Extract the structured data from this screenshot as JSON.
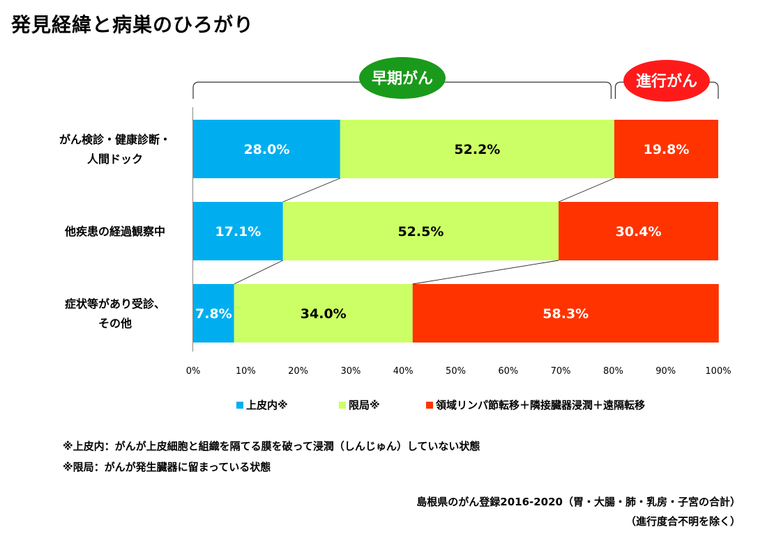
{
  "page": {
    "title": "発見経緯と病巣のひろがり"
  },
  "groups": {
    "early": {
      "label": "早期がん",
      "color": "#1a9a1a"
    },
    "advanced": {
      "label": "進行がん",
      "color": "#ff1a1a"
    }
  },
  "legend": {
    "items": [
      {
        "label": "上皮内※",
        "color": "#00aeef"
      },
      {
        "label": "限局※",
        "color": "#ccff66"
      },
      {
        "label": "領域リンパ節転移＋隣接臓器浸潤＋遠隔転移",
        "color": "#ff3300"
      }
    ]
  },
  "notes": {
    "note1": "※上皮内：がんが上皮細胞と組織を隔てる膜を破って浸潤（しんじゅん）していない状態",
    "note2": "※限局：がんが発生臓器に留まっている状態"
  },
  "source": {
    "line1": "島根県のがん登録2016-2020（胃・大腸・肺・乳房・子宮の合計）",
    "line2": "（進行度合不明を除く）"
  },
  "chart_data": {
    "type": "bar",
    "orientation": "horizontal",
    "stacked": "percent",
    "categories": [
      [
        "がん検診・健康診断・",
        "人間ドック"
      ],
      [
        "他疾患の経過観察中"
      ],
      [
        "症状等があり受診、",
        "その他"
      ]
    ],
    "series": [
      {
        "name": "上皮内※",
        "color": "#00aeef",
        "label_color": "#ffffff",
        "values": [
          28.0,
          17.1,
          7.8
        ],
        "labels": [
          "28.0%",
          "17.1%",
          "7.8%"
        ]
      },
      {
        "name": "限局※",
        "color": "#ccff66",
        "label_color": "#000000",
        "values": [
          52.2,
          52.5,
          34.0
        ],
        "labels": [
          "52.2%",
          "52.5%",
          "34.0%"
        ]
      },
      {
        "name": "領域リンパ節転移＋隣接臓器浸潤＋遠隔転移",
        "color": "#ff3300",
        "label_color": "#ffffff",
        "values": [
          19.8,
          30.4,
          58.3
        ],
        "labels": [
          "19.8%",
          "30.4%",
          "58.3%"
        ]
      }
    ],
    "xlim": [
      0,
      100
    ],
    "xticks": [
      "0%",
      "10%",
      "20%",
      "30%",
      "40%",
      "50%",
      "60%",
      "70%",
      "80%",
      "90%",
      "100%"
    ],
    "grid": false,
    "series_lines": true,
    "legend_position": "bottom"
  }
}
